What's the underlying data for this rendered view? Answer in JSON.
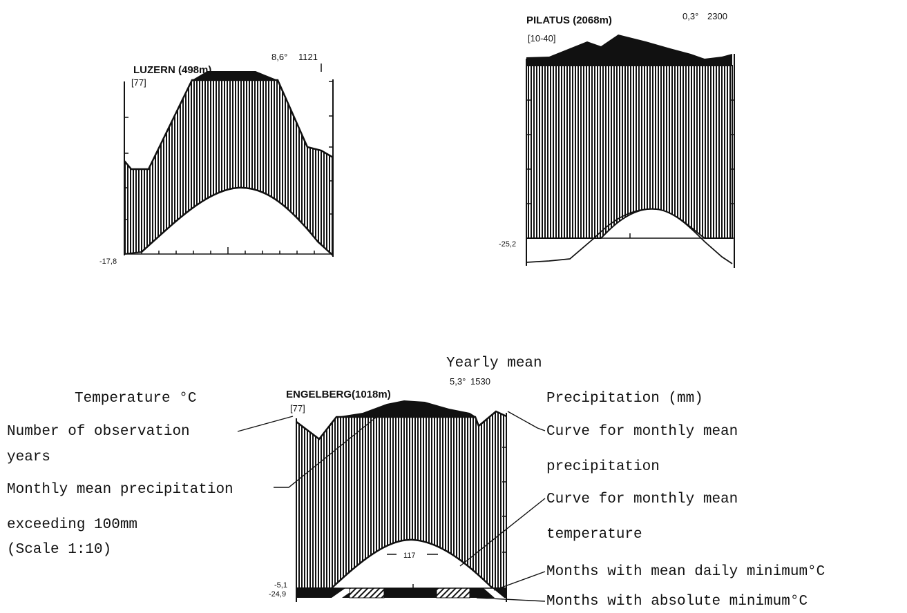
{
  "chart_data": [
    {
      "type": "area",
      "station": "LUZERN (498m)",
      "years": "[77]",
      "mean_temp": "8,6°",
      "mean_precip": "1121",
      "min_label": "-17,8",
      "precip_mm": [
        70,
        70,
        150,
        210,
        210,
        210,
        210,
        210,
        200,
        120,
        115,
        105
      ],
      "temp_c": [
        -17.8,
        -13,
        -5,
        2,
        9,
        12,
        12,
        9,
        2,
        -5,
        -13,
        -17.8
      ],
      "precip_above_100mm": [
        100,
        100,
        100,
        105,
        115,
        125,
        125,
        120,
        105,
        100,
        100,
        100
      ]
    },
    {
      "type": "area",
      "station": "PILATUS (2068m)",
      "years": "[10-40]",
      "mean_temp": "0,3°",
      "mean_precip": "2300",
      "min_label": "-25,2",
      "precip_mm": [
        300,
        300,
        300,
        300,
        300,
        300,
        300,
        300,
        300,
        300,
        300,
        300
      ],
      "temp_c": [
        -31,
        -31,
        -30,
        -25,
        -18,
        -8,
        -8,
        -10,
        -17,
        -25,
        -26,
        -31
      ],
      "precip_above_100mm": [
        100,
        100,
        110,
        130,
        150,
        125,
        155,
        140,
        120,
        100,
        110,
        105
      ]
    },
    {
      "type": "area",
      "station": "ENGELBERG(1018m)",
      "years": "[77]",
      "mean_temp": "5,3°",
      "mean_precip": "1530",
      "min_label_daily": "-5,1",
      "min_label_absolute": "-24,9",
      "peak_label": "117",
      "precip_mm": [
        200,
        195,
        250,
        250,
        260,
        260,
        265,
        260,
        255,
        235,
        250,
        240
      ],
      "temp_c": [
        -5.1,
        -3,
        0,
        5,
        10,
        12,
        12,
        10,
        5,
        0,
        -3,
        -5.1
      ],
      "precip_above_100mm": [
        100,
        100,
        100,
        105,
        115,
        125,
        125,
        120,
        105,
        100,
        100,
        100
      ]
    }
  ],
  "legend": {
    "yearly_mean": "Yearly mean",
    "temperature": "Temperature °C",
    "precipitation": "Precipitation (mm)",
    "obs_years_1": "Number of observation",
    "obs_years_2": "years",
    "monthly_exceed_1": "Monthly mean precipitation",
    "monthly_exceed_2": "exceeding 100mm",
    "monthly_exceed_3": "(Scale  1:10)",
    "curve_precip_1": "Curve for monthly mean",
    "curve_precip_2": "precipitation",
    "curve_temp_1": "Curve for monthly mean",
    "curve_temp_2": "temperature",
    "months_daily_min": "Months with mean daily minimum°C",
    "months_abs_min": "Months with absolute minimum°C"
  },
  "colors": {
    "ink": "#111111",
    "paper": "#ffffff"
  }
}
